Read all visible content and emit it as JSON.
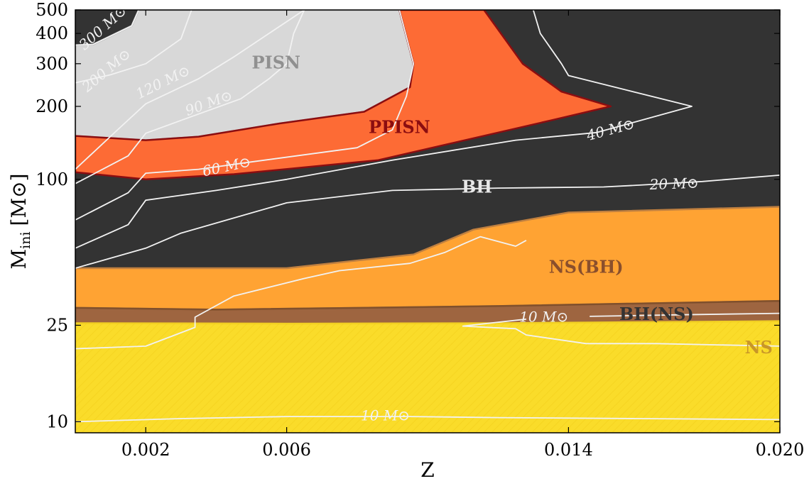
{
  "chart_data": {
    "type": "area",
    "xlabel": "Z",
    "ylabel": "M_ini [M_⊙]",
    "ylabel_main": "M",
    "ylabel_sub": "ini",
    "ylabel_unit": "[M⊙]",
    "xlim": [
      0,
      0.02
    ],
    "ylim": [
      9,
      500
    ],
    "yscale": "log",
    "grid": false,
    "xticks": [
      {
        "value": 0.002,
        "label": "0.002"
      },
      {
        "value": 0.006,
        "label": "0.006"
      },
      {
        "value": 0.014,
        "label": "0.014"
      },
      {
        "value": 0.02,
        "label": "0.020"
      }
    ],
    "yticks": [
      {
        "value": 10,
        "label": "10"
      },
      {
        "value": 25,
        "label": "25"
      },
      {
        "value": 100,
        "label": "100"
      },
      {
        "value": 200,
        "label": "200"
      },
      {
        "value": 300,
        "label": "300"
      },
      {
        "value": 400,
        "label": "400"
      },
      {
        "value": 500,
        "label": "500"
      }
    ],
    "regions": [
      {
        "name": "BH",
        "label": "BH",
        "fill": "#333333",
        "stroke": "none",
        "label_color": "#e8e8e8",
        "label_at": [
          0.0114,
          92
        ],
        "points": [
          [
            0,
            9
          ],
          [
            0.02,
            9
          ],
          [
            0.02,
            500
          ],
          [
            0,
            500
          ]
        ]
      },
      {
        "name": "PISN",
        "label": "PISN",
        "fill": "#d8d8d8",
        "stroke": "#a0a0a0",
        "label_color": "#909090",
        "label_at": [
          0.0057,
          300
        ],
        "points": [
          [
            0,
            151
          ],
          [
            0.002,
            145
          ],
          [
            0.0035,
            150
          ],
          [
            0.0058,
            170
          ],
          [
            0.0082,
            190
          ],
          [
            0.0095,
            240
          ],
          [
            0.0096,
            300
          ],
          [
            0.0092,
            500
          ],
          [
            0.0018,
            500
          ],
          [
            0.0016,
            430
          ],
          [
            0.0005,
            360
          ],
          [
            0,
            358
          ]
        ]
      },
      {
        "name": "PPISN",
        "label": "PPISN",
        "fill": "#fd6b35",
        "stroke": "#8b0d10",
        "label_color": "#8b0d10",
        "label_at": [
          0.0092,
          162
        ],
        "points": [
          [
            0,
            107
          ],
          [
            0.002,
            100
          ],
          [
            0.0045,
            105
          ],
          [
            0.0086,
            120
          ],
          [
            0.0135,
            175
          ],
          [
            0.0152,
            200
          ],
          [
            0.0138,
            230
          ],
          [
            0.0127,
            300
          ],
          [
            0.0116,
            500
          ],
          [
            0.0092,
            500
          ],
          [
            0.0096,
            300
          ],
          [
            0.0095,
            240
          ],
          [
            0.0082,
            190
          ],
          [
            0.0058,
            170
          ],
          [
            0.0035,
            150
          ],
          [
            0.002,
            145
          ],
          [
            0,
            151
          ]
        ]
      },
      {
        "name": "NS(BH)",
        "label": "NS(BH)",
        "fill": "#ffa333",
        "stroke": "#c08040",
        "label_color": "#8a4f2c",
        "label_at": [
          0.0145,
          43
        ],
        "points": [
          [
            0,
            43
          ],
          [
            0.006,
            43
          ],
          [
            0.0096,
            49
          ],
          [
            0.0113,
            62
          ],
          [
            0.014,
            73
          ],
          [
            0.02,
            77
          ],
          [
            0.02,
            31.5
          ],
          [
            0.012,
            30
          ],
          [
            0.004,
            29
          ],
          [
            0,
            29.5
          ]
        ]
      },
      {
        "name": "BH(NS)",
        "label": "BH(NS)",
        "fill": "#9e6540",
        "stroke": "#80502c",
        "label_color": "#333333",
        "label_at": [
          0.0165,
          27.5
        ],
        "points": [
          [
            0,
            29.5
          ],
          [
            0.004,
            29
          ],
          [
            0.012,
            30
          ],
          [
            0.02,
            31.5
          ],
          [
            0.02,
            26
          ],
          [
            0.012,
            25.5
          ],
          [
            0.006,
            25.4
          ],
          [
            0,
            25.5
          ]
        ]
      },
      {
        "name": "NS",
        "label": "NS",
        "fill": "#fadc2a",
        "stroke": "#f2d024",
        "label_color": "#c89628",
        "label_at": [
          0.0194,
          20
        ],
        "points": [
          [
            0,
            25.5
          ],
          [
            0.006,
            25.4
          ],
          [
            0.012,
            25.5
          ],
          [
            0.02,
            26
          ],
          [
            0.02,
            9
          ],
          [
            0,
            9
          ]
        ]
      }
    ],
    "contours": [
      {
        "name": "10 M⊙ (lower)",
        "label": "10 M⊙",
        "label_at": [
          0.0088,
          10.5
        ],
        "points": [
          [
            0,
            10
          ],
          [
            0.003,
            10.3
          ],
          [
            0.006,
            10.5
          ],
          [
            0.0085,
            10.5
          ],
          [
            0.0095,
            10.5
          ],
          [
            0.012,
            10.4
          ],
          [
            0.016,
            10.3
          ],
          [
            0.02,
            10.2
          ]
        ]
      },
      {
        "name": "10 M⊙ (upper)",
        "label": "10 M⊙",
        "label_at": [
          0.0133,
          26.8
        ],
        "points": [
          [
            0,
            20
          ],
          [
            0.002,
            20.5
          ],
          [
            0.0034,
            24.5
          ],
          [
            0.0034,
            27
          ],
          [
            0.0045,
            33
          ],
          [
            0.0065,
            39
          ],
          [
            0.0075,
            42
          ],
          [
            0.0095,
            45
          ],
          [
            0.0105,
            50
          ],
          [
            0.011,
            54
          ],
          [
            0.0115,
            58
          ],
          [
            0.0125,
            53
          ],
          [
            0.0128,
            56
          ]
        ]
      },
      {
        "name": "10 M⊙ (right)",
        "label": "",
        "label_at": null,
        "points": [
          [
            0.0146,
            27.2
          ],
          [
            0.017,
            27.6
          ],
          [
            0.02,
            28
          ],
          [
            0.02,
            28
          ]
        ]
      },
      {
        "name": "10 M⊙ (loop)",
        "label": "",
        "label_at": null,
        "points": [
          [
            0.0128,
            26.5
          ],
          [
            0.011,
            24.8
          ],
          [
            0.0125,
            24.2
          ],
          [
            0.0128,
            22.8
          ],
          [
            0.0145,
            21
          ],
          [
            0.0165,
            21
          ],
          [
            0.02,
            20.5
          ]
        ]
      },
      {
        "name": "20 M⊙",
        "label": "20 M⊙",
        "label_at": [
          0.017,
          95
        ],
        "points": [
          [
            0,
            43
          ],
          [
            0.002,
            52
          ],
          [
            0.003,
            60
          ],
          [
            0.006,
            80
          ],
          [
            0.009,
            90
          ],
          [
            0.012,
            92
          ],
          [
            0.015,
            93
          ],
          [
            0.0162,
            95
          ],
          [
            0.0178,
            98
          ],
          [
            0.02,
            104
          ]
        ]
      },
      {
        "name": "40 M⊙",
        "label": "40 M⊙",
        "label_at": [
          0.0152,
          159
        ],
        "points": [
          [
            0,
            52
          ],
          [
            0.0015,
            65
          ],
          [
            0.002,
            82
          ],
          [
            0.004,
            90
          ],
          [
            0.006,
            100
          ],
          [
            0.009,
            120
          ],
          [
            0.0125,
            145
          ],
          [
            0.0148,
            156
          ],
          [
            0.0175,
            200
          ],
          [
            0.014,
            268
          ],
          [
            0.0138,
            300
          ],
          [
            0.0132,
            400
          ],
          [
            0.013,
            500
          ]
        ]
      },
      {
        "name": "60 M⊙",
        "label": "60 M⊙",
        "label_at": [
          0.0043,
          112
        ],
        "points": [
          [
            0,
            68
          ],
          [
            0.0015,
            88
          ],
          [
            0.002,
            106
          ],
          [
            0.0035,
            110
          ],
          [
            0.005,
            118
          ],
          [
            0.008,
            135
          ],
          [
            0.009,
            160
          ],
          [
            0.0094,
            220
          ],
          [
            0.0096,
            300
          ],
          [
            0.0092,
            500
          ]
        ]
      },
      {
        "name": "90 M⊙",
        "label": "90 M⊙",
        "label_at": [
          0.0038,
          205
        ],
        "points": [
          [
            0,
            96
          ],
          [
            0.0015,
            125
          ],
          [
            0.002,
            155
          ],
          [
            0.003,
            175
          ],
          [
            0.0047,
            215
          ],
          [
            0.0055,
            260
          ],
          [
            0.006,
            300
          ],
          [
            0.0062,
            400
          ],
          [
            0.0065,
            500
          ]
        ]
      },
      {
        "name": "120 M⊙",
        "label": "120 M⊙",
        "label_at": [
          0.0025,
          250
        ],
        "points": [
          [
            0,
            110
          ],
          [
            0.0012,
            160
          ],
          [
            0.002,
            205
          ],
          [
            0.0035,
            260
          ],
          [
            0.0045,
            320
          ],
          [
            0.0065,
            500
          ]
        ]
      },
      {
        "name": "200 M⊙",
        "label": "200 M⊙",
        "label_at": [
          0.0009,
          280
        ],
        "points": [
          [
            0,
            250
          ],
          [
            0.001,
            270
          ],
          [
            0.002,
            300
          ],
          [
            0.003,
            380
          ],
          [
            0.0033,
            500
          ]
        ]
      },
      {
        "name": "300 M⊙",
        "label": "300 M⊙",
        "label_at": [
          0.0008,
          420
        ],
        "points": [
          [
            0,
            358
          ],
          [
            0.0005,
            360
          ],
          [
            0.0016,
            430
          ],
          [
            0.0018,
            500
          ]
        ]
      }
    ],
    "colors": {
      "frame": "#000000",
      "contour": "#f2f2f2",
      "background": "#ffffff"
    }
  }
}
